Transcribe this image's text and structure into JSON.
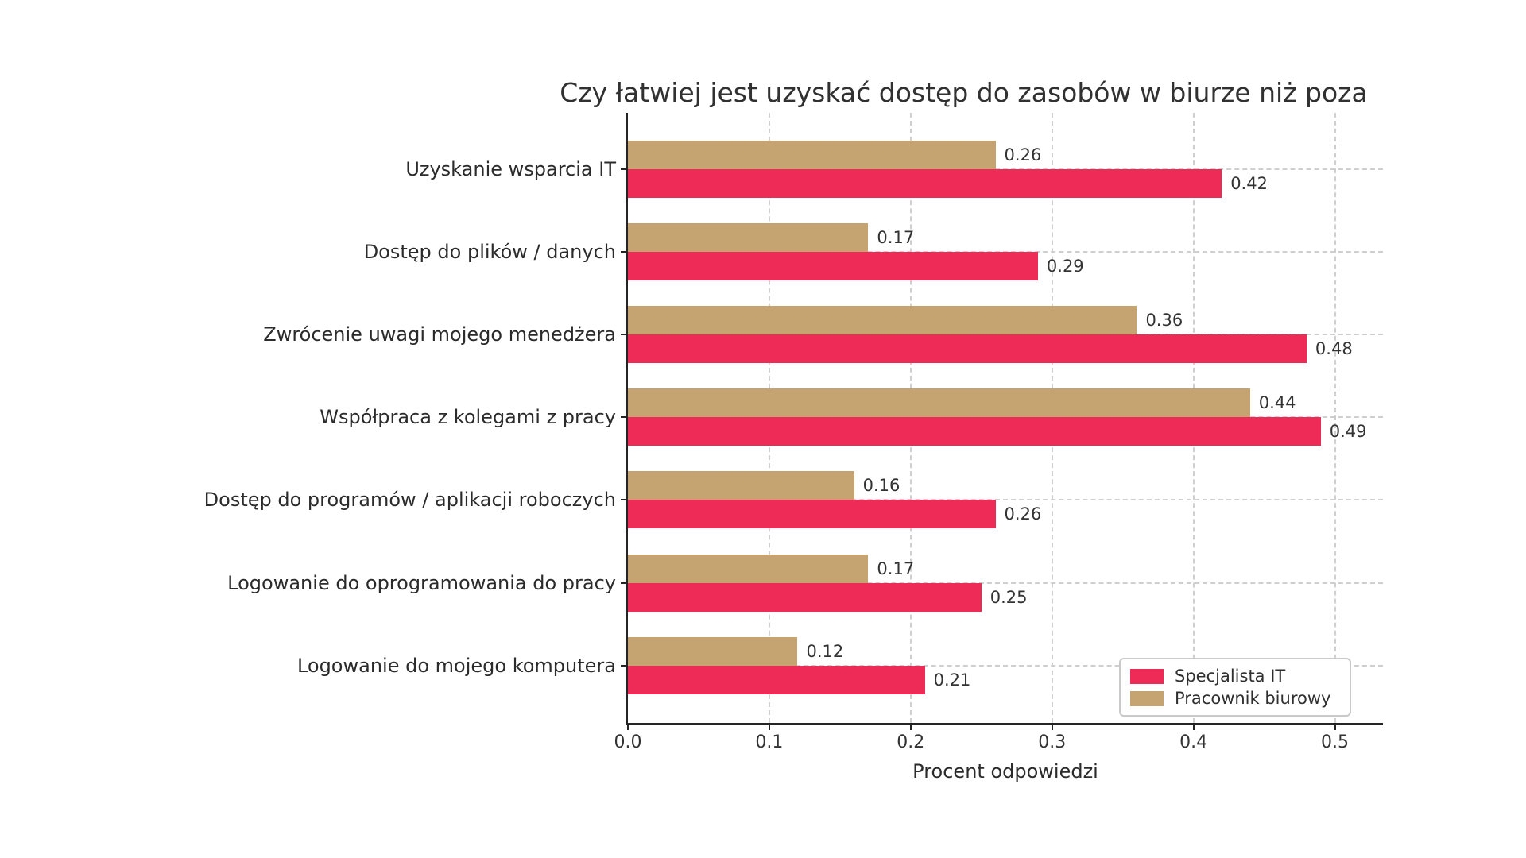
{
  "title": "Czy łatwiej jest uzyskać dostęp do zasobów w biurze niż poza",
  "x_axis": {
    "label": "Procent odpowiedzi",
    "ticks": [
      "0.0",
      "0.1",
      "0.2",
      "0.3",
      "0.4",
      "0.5"
    ],
    "tick_values": [
      0.0,
      0.1,
      0.2,
      0.3,
      0.4,
      0.5
    ]
  },
  "legend": {
    "position": "lower right",
    "items": [
      {
        "label": "Specjalista IT",
        "color": "#ee2a56"
      },
      {
        "label": "Pracownik biurowy",
        "color": "#c6a472"
      }
    ]
  },
  "colors": {
    "grid": "#cfcfcf",
    "spine": "#242424",
    "text": "#2b2b2b",
    "background": "#ffffff"
  },
  "chart_data": {
    "type": "bar",
    "orientation": "horizontal",
    "title": "Czy łatwiej jest uzyskać dostęp do zasobów w biurze niż poza",
    "xlabel": "Procent odpowiedzi",
    "ylabel": "",
    "xlim": [
      0,
      0.534
    ],
    "grid": true,
    "legend_position": "lower right",
    "categories": [
      "Uzyskanie wsparcia IT",
      "Dostęp do plików / danych",
      "Zwrócenie uwagi mojego menedżera",
      "Współpraca z kolegami z pracy",
      "Dostęp do programów / aplikacji roboczych",
      "Logowanie do oprogramowania do pracy",
      "Logowanie do mojego komputera"
    ],
    "series": [
      {
        "name": "Specjalista IT",
        "color": "#ee2a56",
        "values": [
          0.42,
          0.29,
          0.48,
          0.49,
          0.26,
          0.25,
          0.21
        ]
      },
      {
        "name": "Pracownik biurowy",
        "color": "#c6a472",
        "values": [
          0.26,
          0.17,
          0.36,
          0.44,
          0.16,
          0.17,
          0.12
        ]
      }
    ]
  }
}
